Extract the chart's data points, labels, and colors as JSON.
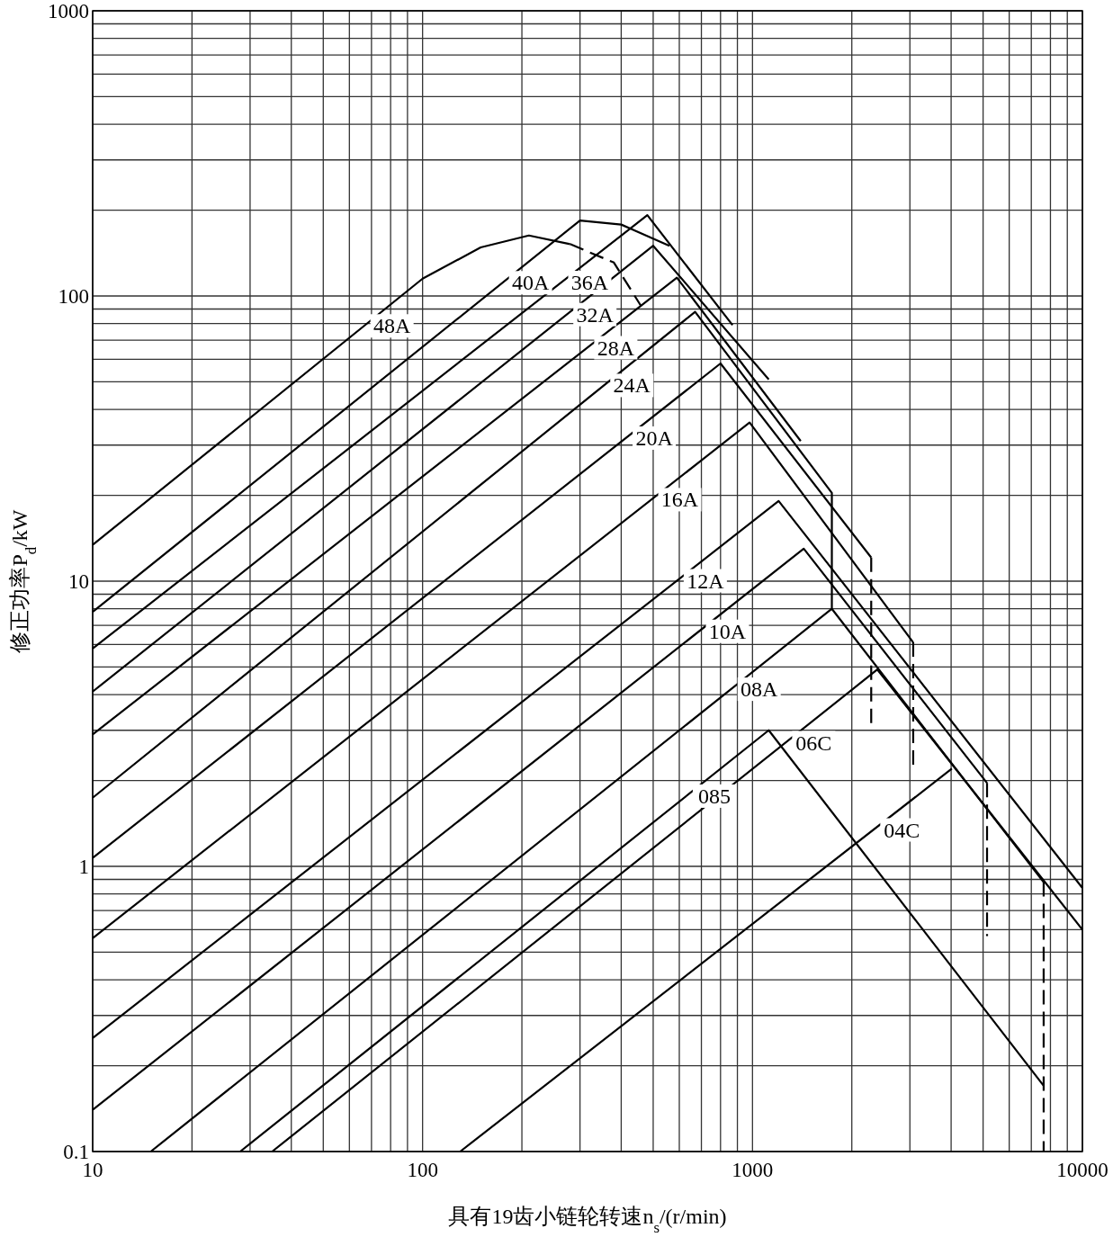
{
  "chart_data": {
    "type": "line",
    "xlabel": "具有19齿小链轮转速n$_{s}$/(r/min)",
    "ylabel": "修正功率P$_{d}$/kW",
    "log": "xy",
    "xlim": [
      10,
      10000
    ],
    "ylim": [
      0.1,
      1000
    ],
    "xticks": [
      10,
      100,
      1000,
      10000
    ],
    "yticks": [
      0.1,
      1,
      10,
      100,
      1000
    ],
    "grid": true,
    "series": [
      {
        "name": "48A",
        "color": "#000000",
        "x": [
          10,
          100,
          150,
          210,
          280
        ],
        "values": [
          13.4,
          115,
          148,
          163,
          152
        ]
      },
      {
        "color": "#000000",
        "line_style": "dashed",
        "x": [
          280,
          380,
          460
        ],
        "values": [
          152,
          131,
          92
        ]
      },
      {
        "name": "40A",
        "color": "#000000",
        "x": [
          10,
          300,
          400,
          560
        ],
        "values": [
          7.8,
          184,
          178,
          150
        ]
      },
      {
        "name": "36A",
        "color": "#000000",
        "x": [
          10,
          480,
          870
        ],
        "values": [
          5.8,
          192,
          79
        ]
      },
      {
        "name": "32A",
        "color": "#000000",
        "x": [
          10,
          500,
          1120
        ],
        "values": [
          4.1,
          150,
          51
        ]
      },
      {
        "name": "28A",
        "color": "#000000",
        "x": [
          10,
          590,
          1400
        ],
        "values": [
          2.9,
          116,
          31
        ]
      },
      {
        "name": "24A",
        "color": "#000000",
        "x": [
          10,
          670,
          1740,
          1740
        ],
        "values": [
          1.74,
          88,
          20.4,
          8.0
        ]
      },
      {
        "name": "20A",
        "color": "#000000",
        "x": [
          10,
          800,
          2290
        ],
        "values": [
          1.07,
          58,
          12.1
        ]
      },
      {
        "color": "#000000",
        "line_style": "dashed",
        "x": [
          2290,
          2290
        ],
        "values": [
          12.1,
          3.15
        ]
      },
      {
        "name": "16A",
        "color": "#000000",
        "x": [
          10,
          980,
          3070
        ],
        "values": [
          0.56,
          36,
          6.1
        ]
      },
      {
        "color": "#000000",
        "line_style": "dashed",
        "x": [
          3070,
          3070
        ],
        "values": [
          6.1,
          2.2
        ]
      },
      {
        "name": "12A",
        "color": "#000000",
        "x": [
          10,
          1200,
          10000
        ],
        "values": [
          0.25,
          19.1,
          0.84
        ]
      },
      {
        "name": "10A",
        "color": "#000000",
        "x": [
          10,
          1430,
          5140
        ],
        "values": [
          0.14,
          13.0,
          1.96
        ]
      },
      {
        "color": "#000000",
        "line_style": "dashed",
        "x": [
          5140,
          5140
        ],
        "values": [
          1.96,
          0.57
        ]
      },
      {
        "name": "08A",
        "color": "#000000",
        "x": [
          15,
          1740,
          7630
        ],
        "values": [
          0.1,
          8.0,
          0.88
        ]
      },
      {
        "color": "#000000",
        "line_style": "dashed",
        "x": [
          7630,
          7630
        ],
        "values": [
          0.88,
          0.1
        ]
      },
      {
        "name": "06C",
        "color": "#000000",
        "x": [
          35,
          2390,
          10000
        ],
        "values": [
          0.1,
          4.9,
          0.6
        ]
      },
      {
        "name": "04C",
        "color": "#000000",
        "x": [
          130,
          4020
        ],
        "values": [
          0.1,
          2.2
        ]
      },
      {
        "name": "085",
        "color": "#000000",
        "x": [
          28,
          1120,
          7630
        ],
        "values": [
          0.1,
          3.0,
          0.17
        ]
      }
    ]
  }
}
